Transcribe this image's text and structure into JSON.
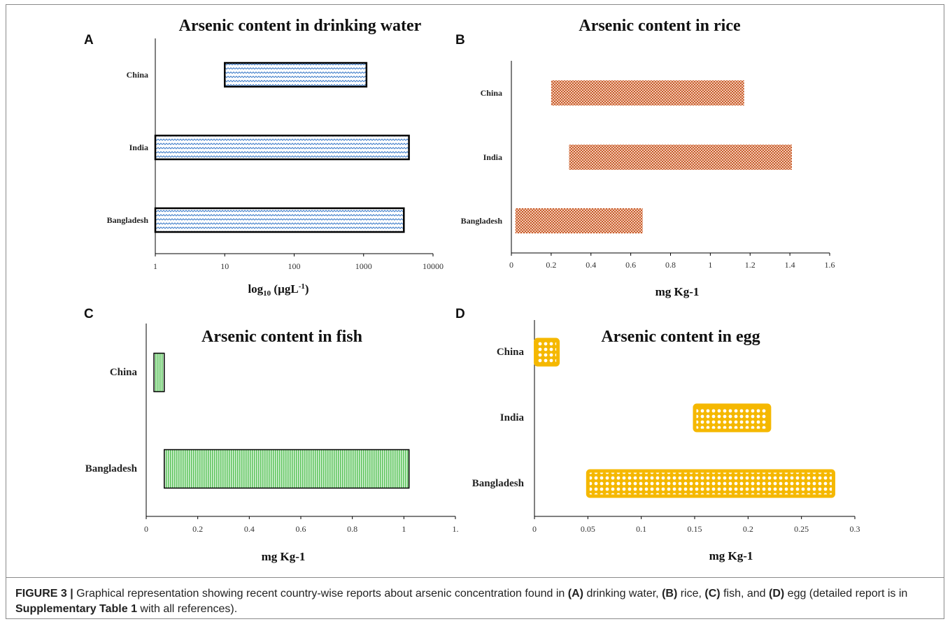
{
  "chart_data": [
    {
      "panel": "A",
      "type": "bar",
      "orientation": "horizontal",
      "floating": true,
      "title": "Arsenic content in drinking water",
      "xlabel_main": "log",
      "xlabel_sub": "10",
      "xlabel_rest": " (µgL",
      "xlabel_sup": "-1",
      "xlabel_end": ")",
      "xscale": "log",
      "xlim": [
        1,
        10000
      ],
      "xticks": [
        "1",
        "10",
        "100",
        "1000",
        "10000"
      ],
      "categories": [
        "China",
        "India",
        "Bangladesh"
      ],
      "series": [
        {
          "ranges": [
            [
              10,
              1100
            ],
            [
              1,
              4500
            ],
            [
              1,
              3800
            ]
          ]
        }
      ],
      "fill_color": "#5b8fd1",
      "edge_color": "#000000"
    },
    {
      "panel": "B",
      "type": "bar",
      "orientation": "horizontal",
      "floating": true,
      "title": "Arsenic content in rice",
      "xlabel": "mg Kg-1",
      "xlim": [
        0,
        1.6
      ],
      "xticks": [
        "0",
        "0.2",
        "0.4",
        "0.6",
        "0.8",
        "1",
        "1.2",
        "1.4",
        "1.6"
      ],
      "categories": [
        "China",
        "India",
        "Bangladesh"
      ],
      "series": [
        {
          "ranges": [
            [
              0.2,
              1.17
            ],
            [
              0.29,
              1.41
            ],
            [
              0.02,
              0.66
            ]
          ]
        }
      ],
      "fill_color": "#c65a2a"
    },
    {
      "panel": "C",
      "type": "bar",
      "orientation": "horizontal",
      "floating": true,
      "title": "Arsenic content in fish",
      "xlabel": "mg Kg-1",
      "xlim": [
        0,
        1.2
      ],
      "xticks": [
        "0",
        "0.2",
        "0.4",
        "0.6",
        "0.8",
        "1",
        "1."
      ],
      "categories": [
        "China",
        "Bangladesh"
      ],
      "series": [
        {
          "ranges": [
            [
              0.03,
              0.07
            ],
            [
              0.07,
              1.02
            ]
          ]
        }
      ],
      "fill_color": "#5cc45c",
      "edge_color": "#000000"
    },
    {
      "panel": "D",
      "type": "bar",
      "orientation": "horizontal",
      "floating": true,
      "title": "Arsenic content in egg",
      "xlabel": "mg Kg-1",
      "xlim": [
        0,
        0.3
      ],
      "xticks": [
        "0",
        "0.05",
        "0.1",
        "0.15",
        "0.2",
        "0.25",
        "0.3"
      ],
      "categories": [
        "China",
        "India",
        "Bangladesh"
      ],
      "series": [
        {
          "ranges": [
            [
              0.001,
              0.022
            ],
            [
              0.15,
              0.22
            ],
            [
              0.05,
              0.28
            ]
          ]
        }
      ],
      "fill_color": "#f5b800"
    }
  ],
  "caption": {
    "label": "FIGURE 3 |",
    "t1": " Graphical representation showing recent country-wise reports about arsenic concentration found in ",
    "a": "(A)",
    "t2": " drinking water, ",
    "b": "(B)",
    "t3": " rice, ",
    "c": "(C)",
    "t4": " fish, and ",
    "d": "(D)",
    "t5": " egg (detailed report is in ",
    "supp": "Supplementary Table 1",
    "t6": " with all references)."
  }
}
